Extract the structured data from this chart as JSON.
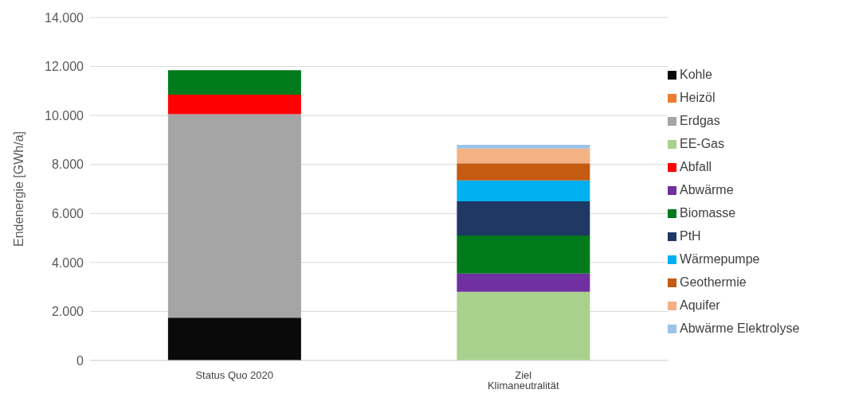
{
  "chart_data": {
    "type": "bar",
    "stacked": true,
    "ylabel": "Endenergie [GWh/a]",
    "categories": [
      "Status Quo 2020",
      "Ziel Klimaneutralität"
    ],
    "series": [
      {
        "name": "Kohle",
        "color": "#0a0a0a",
        "values": [
          1750,
          null
        ]
      },
      {
        "name": "Heizöl",
        "color": "#ed7d31",
        "values": [
          null,
          null
        ]
      },
      {
        "name": "Erdgas",
        "color": "#a5a5a5",
        "values": [
          8300,
          null
        ]
      },
      {
        "name": "EE-Gas",
        "color": "#a9d18e",
        "values": [
          null,
          2800
        ]
      },
      {
        "name": "Abfall",
        "color": "#ff0000",
        "values": [
          800,
          null
        ]
      },
      {
        "name": "Abwärme",
        "color": "#7030a0",
        "values": [
          null,
          750
        ]
      },
      {
        "name": "Biomasse",
        "color": "#007a1a",
        "values": [
          1000,
          1550
        ]
      },
      {
        "name": "PtH",
        "color": "#1f3864",
        "values": [
          null,
          1400
        ]
      },
      {
        "name": "Wärmepumpe",
        "color": "#00b0f0",
        "values": [
          null,
          850
        ]
      },
      {
        "name": "Geothermie",
        "color": "#c55a11",
        "values": [
          null,
          700
        ]
      },
      {
        "name": "Aquifer",
        "color": "#f4b183",
        "values": [
          null,
          600
        ]
      },
      {
        "name": "Abwärme Elektrolyse",
        "color": "#9dc3e6",
        "values": [
          null,
          150
        ]
      }
    ],
    "ylim": [
      0,
      14000
    ],
    "yticks": [
      {
        "value": 0,
        "label": "0"
      },
      {
        "value": 2000,
        "label": "2.000"
      },
      {
        "value": 4000,
        "label": "4.000"
      },
      {
        "value": 6000,
        "label": "6.000"
      },
      {
        "value": 8000,
        "label": "8.000"
      },
      {
        "value": 10000,
        "label": "10.000"
      },
      {
        "value": 12000,
        "label": "12.000"
      },
      {
        "value": 14000,
        "label": "14.000"
      }
    ],
    "grid": "y",
    "legend": "right"
  }
}
